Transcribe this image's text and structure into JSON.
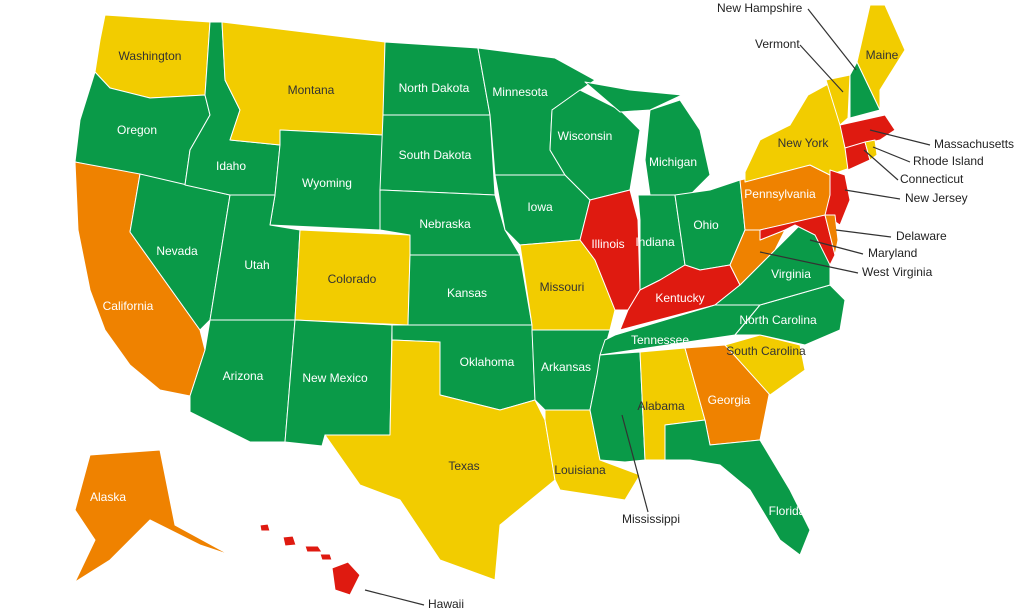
{
  "colors": {
    "green": "#0a9a48",
    "yellow": "#f2cc00",
    "orange": "#ef8200",
    "red": "#df1a10",
    "label_dark": "#333333",
    "label_light": "#ffffff"
  },
  "states": [
    {
      "name": "Washington",
      "status": "yellow"
    },
    {
      "name": "Oregon",
      "status": "green"
    },
    {
      "name": "California",
      "status": "orange"
    },
    {
      "name": "Nevada",
      "status": "green"
    },
    {
      "name": "Idaho",
      "status": "green"
    },
    {
      "name": "Montana",
      "status": "yellow"
    },
    {
      "name": "Wyoming",
      "status": "green"
    },
    {
      "name": "Utah",
      "status": "green"
    },
    {
      "name": "Colorado",
      "status": "yellow"
    },
    {
      "name": "Arizona",
      "status": "green"
    },
    {
      "name": "New Mexico",
      "status": "green"
    },
    {
      "name": "North Dakota",
      "status": "green"
    },
    {
      "name": "South Dakota",
      "status": "green"
    },
    {
      "name": "Nebraska",
      "status": "green"
    },
    {
      "name": "Kansas",
      "status": "green"
    },
    {
      "name": "Oklahoma",
      "status": "green"
    },
    {
      "name": "Texas",
      "status": "yellow"
    },
    {
      "name": "Minnesota",
      "status": "green"
    },
    {
      "name": "Iowa",
      "status": "green"
    },
    {
      "name": "Missouri",
      "status": "yellow"
    },
    {
      "name": "Arkansas",
      "status": "green"
    },
    {
      "name": "Louisiana",
      "status": "yellow"
    },
    {
      "name": "Wisconsin",
      "status": "green"
    },
    {
      "name": "Illinois",
      "status": "red"
    },
    {
      "name": "Michigan",
      "status": "green"
    },
    {
      "name": "Indiana",
      "status": "green"
    },
    {
      "name": "Ohio",
      "status": "green"
    },
    {
      "name": "Kentucky",
      "status": "red"
    },
    {
      "name": "Tennessee",
      "status": "green"
    },
    {
      "name": "Mississippi",
      "status": "green"
    },
    {
      "name": "Alabama",
      "status": "yellow"
    },
    {
      "name": "Georgia",
      "status": "orange"
    },
    {
      "name": "Florida",
      "status": "green"
    },
    {
      "name": "South Carolina",
      "status": "yellow"
    },
    {
      "name": "North Carolina",
      "status": "green"
    },
    {
      "name": "Virginia",
      "status": "green"
    },
    {
      "name": "West Virginia",
      "status": "orange"
    },
    {
      "name": "Pennsylvania",
      "status": "orange"
    },
    {
      "name": "New York",
      "status": "yellow"
    },
    {
      "name": "New Jersey",
      "status": "red"
    },
    {
      "name": "Maryland",
      "status": "red"
    },
    {
      "name": "Delaware",
      "status": "orange"
    },
    {
      "name": "Vermont",
      "status": "yellow"
    },
    {
      "name": "New Hampshire",
      "status": "green"
    },
    {
      "name": "Maine",
      "status": "yellow"
    },
    {
      "name": "Massachusetts",
      "status": "red"
    },
    {
      "name": "Connecticut",
      "status": "red"
    },
    {
      "name": "Rhode Island",
      "status": "yellow"
    },
    {
      "name": "Alaska",
      "status": "orange"
    },
    {
      "name": "Hawaii",
      "status": "red"
    }
  ]
}
